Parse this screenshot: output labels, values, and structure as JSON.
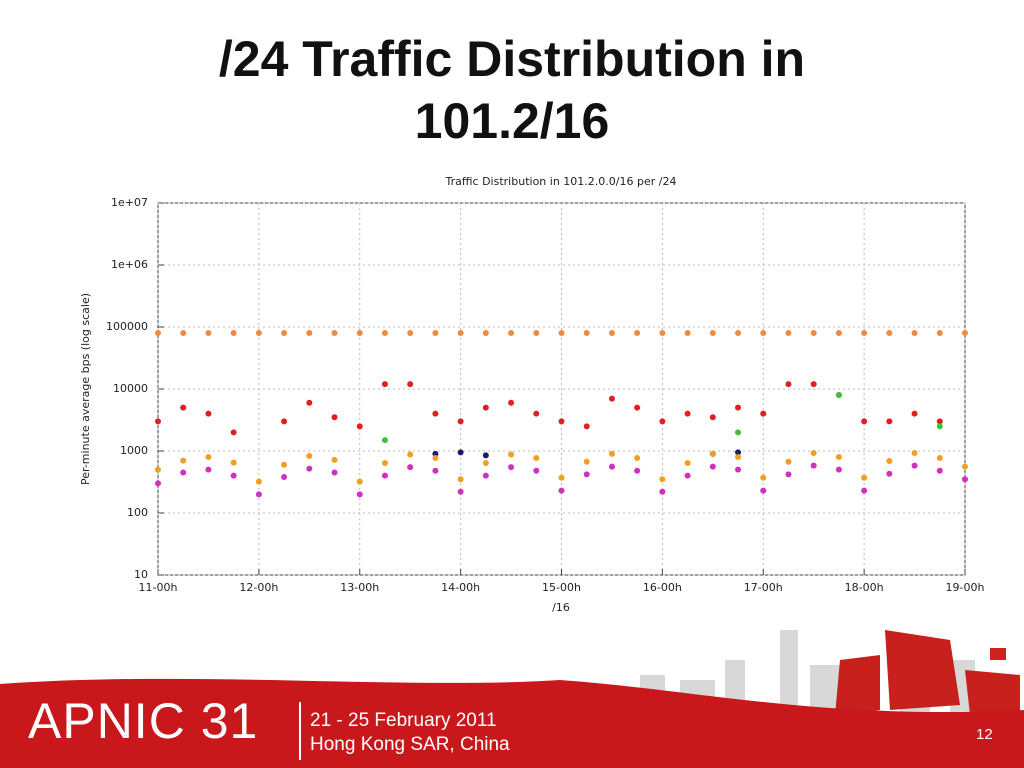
{
  "slide": {
    "title": "/24 Traffic Distribution in 101.2/16",
    "brand": "APNIC 31",
    "dates": "21 - 25 February 2011",
    "place": "Hong Kong SAR, China",
    "page_number": "12"
  },
  "chart_data": {
    "type": "scatter",
    "title": "Traffic Distribution in 101.2.0.0/16 per /24",
    "x_label": "/16",
    "y_label": "Per-minute average bps (log scale)",
    "log_y": true,
    "grid": true,
    "xlim": [
      11,
      19
    ],
    "xticks": [
      {
        "value": 11,
        "label": "11-00h"
      },
      {
        "value": 12,
        "label": "12-00h"
      },
      {
        "value": 13,
        "label": "13-00h"
      },
      {
        "value": 14,
        "label": "14-00h"
      },
      {
        "value": 15,
        "label": "15-00h"
      },
      {
        "value": 16,
        "label": "16-00h"
      },
      {
        "value": 17,
        "label": "17-00h"
      },
      {
        "value": 18,
        "label": "18-00h"
      },
      {
        "value": 19,
        "label": "19-00h"
      }
    ],
    "ylim": [
      10,
      10000000
    ],
    "yticks": [
      10,
      100,
      1000,
      10000,
      100000,
      {
        "value": 1000000,
        "label": "1e+06"
      },
      {
        "value": 10000000,
        "label": "1e+07"
      }
    ],
    "x": [
      11,
      11.25,
      11.5,
      11.75,
      12,
      12.25,
      12.5,
      12.75,
      13,
      13.25,
      13.5,
      13.75,
      14,
      14.25,
      14.5,
      14.75,
      15,
      15.25,
      15.5,
      15.75,
      16,
      16.25,
      16.5,
      16.75,
      17,
      17.25,
      17.5,
      17.75,
      18,
      18.25,
      18.5,
      18.75,
      19
    ],
    "series": [
      {
        "name": "top",
        "color": "#f08a3c",
        "values": [
          80000,
          80000,
          80000,
          80000,
          80000,
          80000,
          80000,
          80000,
          80000,
          80000,
          80000,
          80000,
          80000,
          80000,
          80000,
          80000,
          80000,
          80000,
          80000,
          80000,
          80000,
          80000,
          80000,
          80000,
          80000,
          80000,
          80000,
          80000,
          80000,
          80000,
          80000,
          80000,
          80000
        ]
      },
      {
        "name": "high",
        "color": "#e02020",
        "values": [
          3000,
          5000,
          4000,
          2000,
          null,
          3000,
          6000,
          3500,
          2500,
          12000,
          12000,
          4000,
          3000,
          5000,
          6000,
          4000,
          3000,
          2500,
          7000,
          5000,
          3000,
          4000,
          3500,
          5000,
          4000,
          12000,
          12000,
          8000,
          3000,
          3000,
          4000,
          3000,
          null
        ]
      },
      {
        "name": "navy",
        "color": "#1a1a6e",
        "values": [
          null,
          null,
          null,
          null,
          null,
          null,
          null,
          null,
          null,
          null,
          null,
          900,
          950,
          850,
          null,
          null,
          null,
          null,
          null,
          null,
          null,
          null,
          900,
          950,
          null,
          null,
          null,
          null,
          null,
          null,
          null,
          null,
          null
        ]
      },
      {
        "name": "green",
        "color": "#40c040",
        "values": [
          null,
          null,
          null,
          null,
          null,
          null,
          null,
          null,
          null,
          1500,
          null,
          null,
          null,
          null,
          null,
          null,
          null,
          null,
          null,
          null,
          null,
          null,
          null,
          2000,
          null,
          null,
          null,
          8000,
          null,
          null,
          null,
          2500,
          null
        ]
      },
      {
        "name": "orange",
        "color": "#f0a020",
        "values": [
          500,
          700,
          800,
          650,
          320,
          600,
          830,
          720,
          320,
          640,
          880,
          770,
          350,
          640,
          880,
          770,
          370,
          670,
          900,
          770,
          350,
          640,
          900,
          800,
          370,
          670,
          930,
          800,
          370,
          690,
          930,
          770,
          560
        ]
      },
      {
        "name": "magenta",
        "color": "#d030c0",
        "values": [
          300,
          450,
          500,
          400,
          200,
          380,
          520,
          450,
          200,
          400,
          550,
          480,
          220,
          400,
          550,
          480,
          230,
          420,
          560,
          480,
          220,
          400,
          560,
          500,
          230,
          420,
          580,
          500,
          230,
          430,
          580,
          480,
          350
        ]
      }
    ]
  }
}
